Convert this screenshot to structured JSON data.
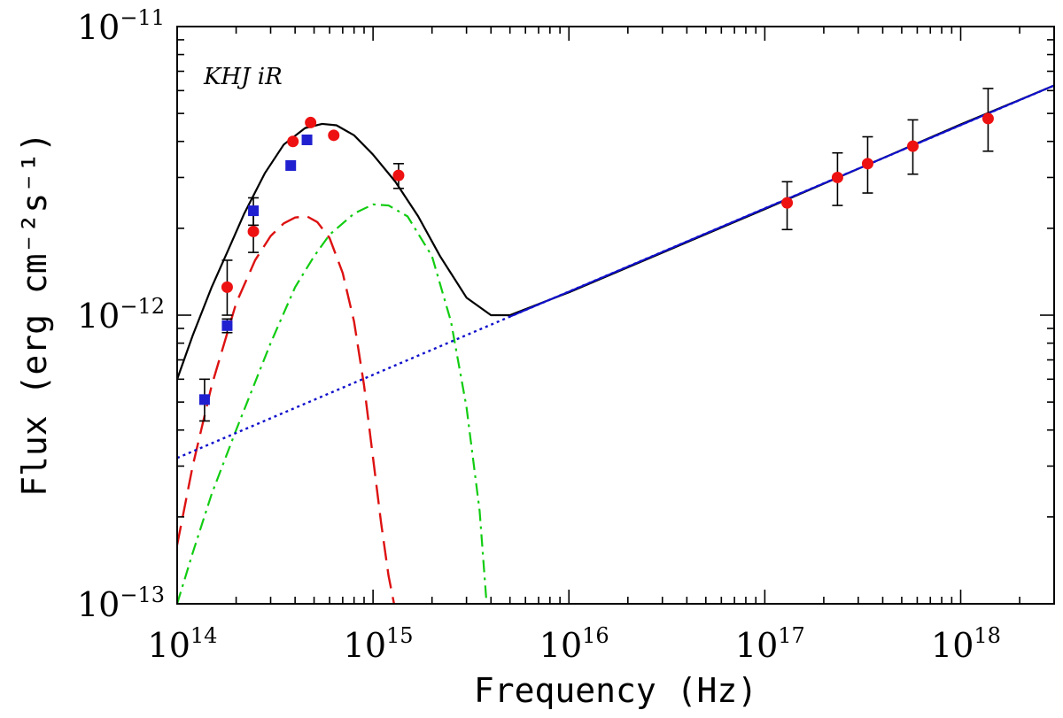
{
  "chart_data": {
    "type": "scatter",
    "xscale": "log",
    "yscale": "log",
    "xlim": [
      100000000000000.0,
      3e+18
    ],
    "ylim": [
      1e-13,
      1e-11
    ],
    "xlabel": "Frequency (Hz)",
    "ylabel": "Flux (erg cm⁻²s⁻¹)",
    "annotation": "KHJ iR",
    "x_ticks": [
      {
        "value": 100000000000000.0,
        "base": "10",
        "exp": "14"
      },
      {
        "value": 1000000000000000.0,
        "base": "10",
        "exp": "15"
      },
      {
        "value": 1e+16,
        "base": "10",
        "exp": "16"
      },
      {
        "value": 1e+17,
        "base": "10",
        "exp": "17"
      },
      {
        "value": 1e+18,
        "base": "10",
        "exp": "18"
      }
    ],
    "y_ticks": [
      {
        "value": 1e-13,
        "base": "10",
        "exp": "−13"
      },
      {
        "value": 1e-12,
        "base": "10",
        "exp": "−12"
      },
      {
        "value": 1e-11,
        "base": "10",
        "exp": "−11"
      }
    ],
    "colors": {
      "red_points": "#ee1111",
      "blue_points": "#2020d0",
      "total_model": "#000000",
      "component_red": "#dd1111",
      "component_green": "#11cc11",
      "power_law": "#1010cc"
    },
    "series": [
      {
        "name": "Observed (red circles)",
        "marker": "circle",
        "points": [
          {
            "x": 180000000000000.0,
            "y": 1.25e-12,
            "yerr": [
              1e-12,
              1.55e-12
            ]
          },
          {
            "x": 245000000000000.0,
            "y": 1.95e-12,
            "yerr": [
              1.65e-12,
              2.25e-12
            ]
          },
          {
            "x": 390000000000000.0,
            "y": 4e-12
          },
          {
            "x": 480000000000000.0,
            "y": 4.65e-12
          },
          {
            "x": 630000000000000.0,
            "y": 4.2e-12
          },
          {
            "x": 1350000000000000.0,
            "y": 3.05e-12,
            "yerr": [
              2.75e-12,
              3.35e-12
            ]
          },
          {
            "x": 1.3e+17,
            "y": 2.45e-12,
            "yerr": [
              1.98e-12,
              2.9e-12
            ]
          },
          {
            "x": 2.35e+17,
            "y": 3e-12,
            "yerr": [
              2.4e-12,
              3.65e-12
            ]
          },
          {
            "x": 3.35e+17,
            "y": 3.35e-12,
            "yerr": [
              2.65e-12,
              4.15e-12
            ]
          },
          {
            "x": 5.7e+17,
            "y": 3.85e-12,
            "yerr": [
              3.08e-12,
              4.75e-12
            ]
          },
          {
            "x": 1.38e+18,
            "y": 4.8e-12,
            "yerr": [
              3.7e-12,
              6.1e-12
            ]
          }
        ]
      },
      {
        "name": "Observed (blue squares)",
        "marker": "square",
        "points": [
          {
            "x": 138000000000000.0,
            "y": 5.1e-13,
            "yerr": [
              4.3e-13,
              6e-13
            ]
          },
          {
            "x": 180000000000000.0,
            "y": 9.2e-13,
            "yerr": [
              8.7e-13,
              9.7e-13
            ]
          },
          {
            "x": 245000000000000.0,
            "y": 2.3e-12,
            "yerr": [
              2.05e-12,
              2.55e-12
            ]
          },
          {
            "x": 380000000000000.0,
            "y": 3.3e-12
          },
          {
            "x": 460000000000000.0,
            "y": 4.05e-12
          }
        ]
      },
      {
        "name": "Total model",
        "style": "solid",
        "x": [
          100000000000000.0,
          120000000000000.0,
          150000000000000.0,
          180000000000000.0,
          220000000000000.0,
          280000000000000.0,
          350000000000000.0,
          450000000000000.0,
          550000000000000.0,
          650000000000000.0,
          800000000000000.0,
          1000000000000000.0,
          1300000000000000.0,
          1700000000000000.0,
          2200000000000000.0,
          3000000000000000.0,
          4000000000000000.0,
          5000000000000000.0,
          1e+16,
          1e+17,
          1e+18,
          3e+18
        ],
        "y": [
          6e-13,
          8.5e-13,
          1.25e-12,
          1.65e-12,
          2.25e-12,
          3.1e-12,
          3.9e-12,
          4.45e-12,
          4.6e-12,
          4.55e-12,
          4.2e-12,
          3.6e-12,
          2.9e-12,
          2.2e-12,
          1.6e-12,
          1.15e-12,
          1e-12,
          1e-12,
          1.2e-12,
          2.33e-12,
          4.58e-12,
          6.25e-12
        ]
      },
      {
        "name": "Red component",
        "style": "dashed",
        "x": [
          100000000000000.0,
          120000000000000.0,
          150000000000000.0,
          200000000000000.0,
          250000000000000.0,
          300000000000000.0,
          350000000000000.0,
          400000000000000.0,
          460000000000000.0,
          520000000000000.0,
          600000000000000.0,
          700000000000000.0,
          800000000000000.0,
          900000000000000.0,
          1000000000000000.0,
          1100000000000000.0,
          1200000000000000.0,
          1280000000000000.0
        ],
        "y": [
          1.6e-13,
          3e-13,
          5.7e-13,
          1.1e-12,
          1.55e-12,
          1.88e-12,
          2.08e-12,
          2.18e-12,
          2.2e-12,
          2.1e-12,
          1.85e-12,
          1.4e-12,
          9.5e-13,
          5.7e-13,
          3.2e-13,
          1.9e-13,
          1.25e-13,
          1e-13
        ]
      },
      {
        "name": "Green component",
        "style": "dash-dot",
        "x": [
          100000000000000.0,
          120000000000000.0,
          150000000000000.0,
          200000000000000.0,
          300000000000000.0,
          400000000000000.0,
          500000000000000.0,
          600000000000000.0,
          800000000000000.0,
          1000000000000000.0,
          1200000000000000.0,
          1500000000000000.0,
          2000000000000000.0,
          2500000000000000.0,
          3000000000000000.0,
          3500000000000000.0,
          3800000000000000.0
        ],
        "y": [
          1e-13,
          1.5e-13,
          2.4e-13,
          4e-13,
          8e-13,
          1.25e-12,
          1.6e-12,
          1.9e-12,
          2.25e-12,
          2.42e-12,
          2.4e-12,
          2.2e-12,
          1.6e-12,
          9.5e-13,
          4.8e-13,
          2.1e-13,
          1e-13
        ]
      },
      {
        "name": "Power law",
        "style": "dotted",
        "x": [
          100000000000000.0,
          3e+18
        ],
        "y": [
          3.2e-13,
          6.25e-12
        ]
      }
    ]
  }
}
